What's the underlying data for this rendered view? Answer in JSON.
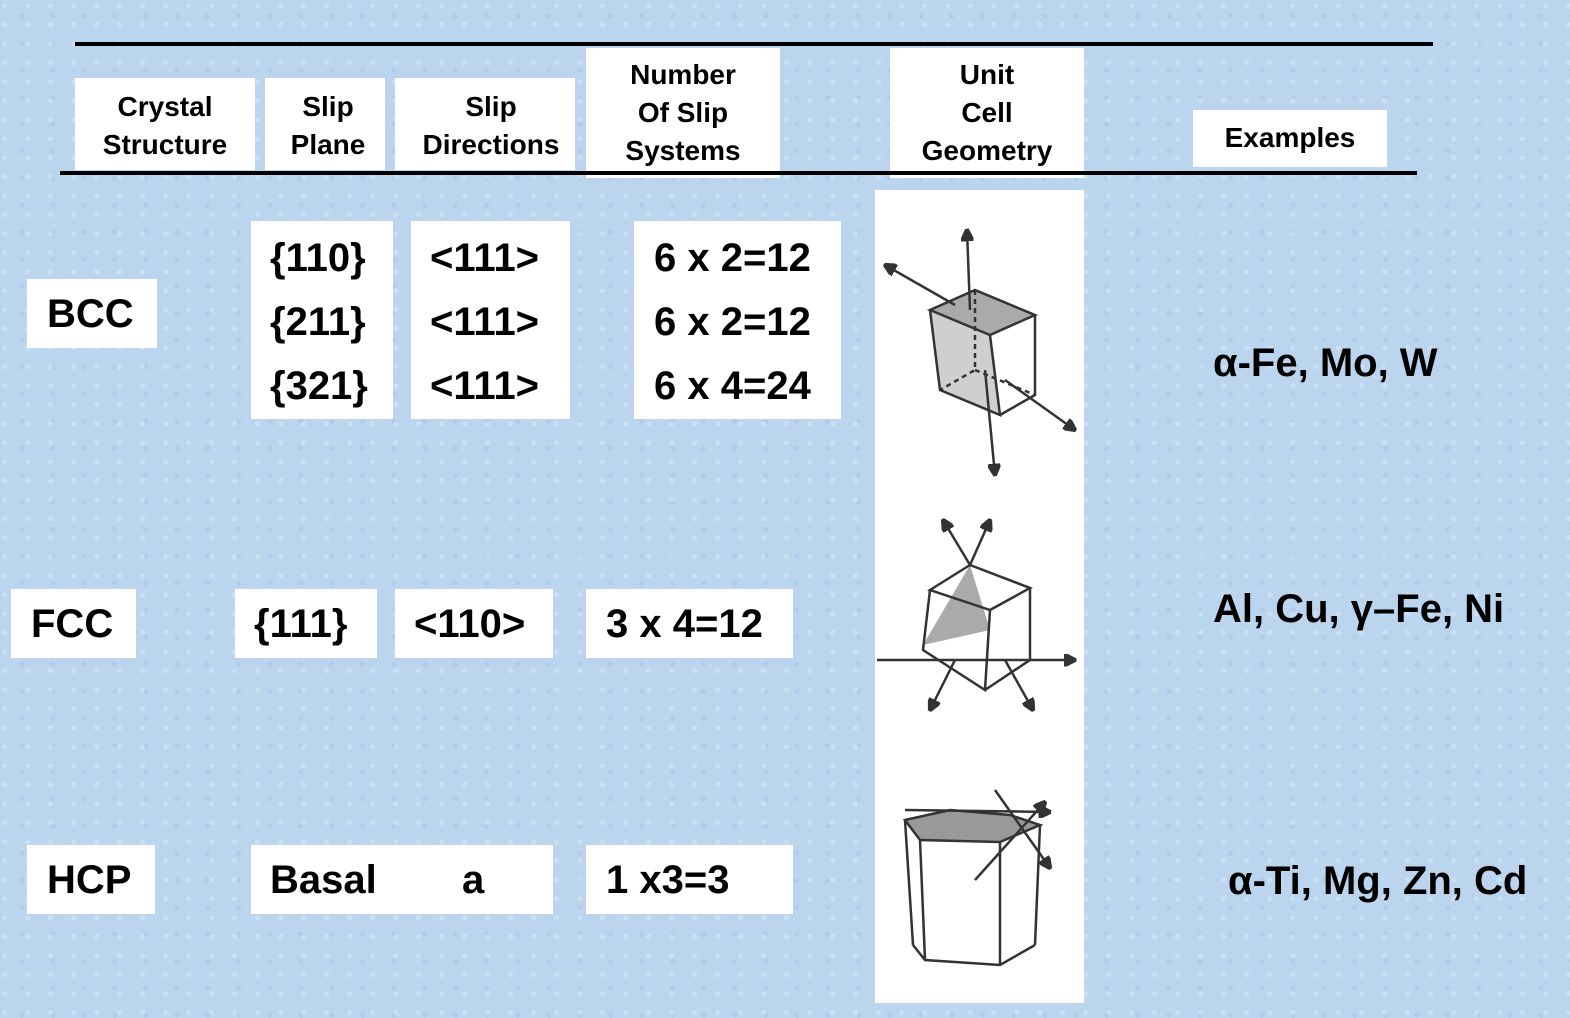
{
  "header": {
    "columns": [
      [
        "Crystal",
        "Structure"
      ],
      [
        "Slip",
        "Plane"
      ],
      [
        "Slip",
        "Directions"
      ],
      [
        "Number",
        "Of Slip",
        "Systems"
      ],
      [
        "Unit",
        "Cell",
        "Geometry"
      ],
      [
        "Examples"
      ]
    ]
  },
  "rows": [
    {
      "structure": "BCC",
      "planes": [
        "{110}",
        "{211}",
        "{321}"
      ],
      "directions": [
        "<111>",
        "<111>",
        "<111>"
      ],
      "systems": [
        "6 x 2=12",
        "6 x 2=12",
        "6 x 4=24"
      ],
      "examples": "α-Fe, Mo, W"
    },
    {
      "structure": "FCC",
      "planes": [
        "{111}"
      ],
      "directions": [
        "<110>"
      ],
      "systems": [
        "3 x 4=12"
      ],
      "examples": "Al, Cu, γ–Fe, Ni"
    },
    {
      "structure": "HCP",
      "planes": [
        "Basal"
      ],
      "directions": [
        "a"
      ],
      "systems": [
        "1 x3=3"
      ],
      "examples": "α-Ti, Mg, Zn, Cd"
    }
  ]
}
